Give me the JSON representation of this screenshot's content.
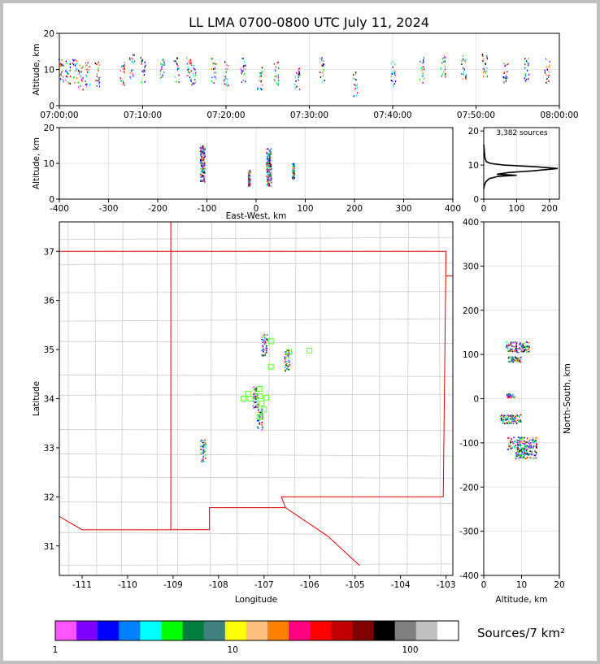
{
  "title": "LL LMA 0700-0800 UTC July 11, 2024",
  "source_count_label": "3,382 sources",
  "colorbar": {
    "label": "Sources/7 km²",
    "ticks": [
      "1",
      "10",
      "100"
    ],
    "colors": [
      "#ff55ff",
      "#8000ff",
      "#0000ff",
      "#0080ff",
      "#00ffff",
      "#00ff00",
      "#008040",
      "#408080",
      "#ffff00",
      "#ffbf80",
      "#ff8000",
      "#ff0080",
      "#ff0000",
      "#c00000",
      "#800000",
      "#000000",
      "#808080",
      "#c0c0c0",
      "#ffffff"
    ]
  },
  "chart_data": [
    {
      "type": "scatter",
      "name": "time-height",
      "ylabel": "Altitude, km",
      "xlabel": "",
      "x_ticks": [
        "07:00:00",
        "07:10:00",
        "07:20:00",
        "07:30:00",
        "07:40:00",
        "07:50:00",
        "08:00:00"
      ],
      "xlim_minutes": [
        0,
        60
      ],
      "ylim": [
        0,
        20
      ],
      "y_ticks": [
        0,
        10,
        20
      ],
      "grid": true,
      "point_groups": [
        {
          "t": 0.2,
          "z": 10
        },
        {
          "t": 1.0,
          "z": 9
        },
        {
          "t": 1.8,
          "z": 10
        },
        {
          "t": 2.5,
          "z": 8
        },
        {
          "t": 3.3,
          "z": 9
        },
        {
          "t": 4.5,
          "z": 9
        },
        {
          "t": 7.5,
          "z": 9
        },
        {
          "t": 8.7,
          "z": 11
        },
        {
          "t": 10.0,
          "z": 10
        },
        {
          "t": 12.3,
          "z": 11
        },
        {
          "t": 14.0,
          "z": 10
        },
        {
          "t": 15.5,
          "z": 10
        },
        {
          "t": 16.0,
          "z": 9
        },
        {
          "t": 18.5,
          "z": 10
        },
        {
          "t": 20.0,
          "z": 9
        },
        {
          "t": 22.0,
          "z": 10
        },
        {
          "t": 24.0,
          "z": 8
        },
        {
          "t": 26.0,
          "z": 9
        },
        {
          "t": 28.5,
          "z": 8
        },
        {
          "t": 31.5,
          "z": 10
        },
        {
          "t": 35.5,
          "z": 6
        },
        {
          "t": 40.0,
          "z": 9
        },
        {
          "t": 43.5,
          "z": 10
        },
        {
          "t": 46.0,
          "z": 11
        },
        {
          "t": 48.5,
          "z": 11
        },
        {
          "t": 51.0,
          "z": 11
        },
        {
          "t": 53.5,
          "z": 10
        },
        {
          "t": 56.0,
          "z": 10
        },
        {
          "t": 58.5,
          "z": 10
        }
      ]
    },
    {
      "type": "scatter",
      "name": "east-west-height",
      "xlabel": "East-West, km",
      "ylabel": "Altitude, km",
      "xlim": [
        -400,
        400
      ],
      "x_ticks": [
        -400,
        -300,
        -200,
        -100,
        0,
        100,
        200,
        300,
        400
      ],
      "ylim": [
        0,
        20
      ],
      "y_ticks": [
        0,
        10,
        20
      ],
      "grid": true,
      "point_groups": [
        {
          "x": -110,
          "z": 10,
          "spread": 7
        },
        {
          "x": -15,
          "z": 6,
          "spread": 3
        },
        {
          "x": 25,
          "z": 9,
          "spread": 7
        },
        {
          "x": 75,
          "z": 8,
          "spread": 3
        }
      ]
    },
    {
      "type": "line",
      "name": "altitude-histogram",
      "xlim": [
        0,
        230
      ],
      "x_ticks": [
        0,
        100,
        200
      ],
      "ylim": [
        0,
        21
      ],
      "y_ticks": [
        0,
        10,
        20
      ],
      "grid": true,
      "altitude_km": [
        3,
        4,
        5,
        6,
        6.7,
        7,
        7.3,
        7.8,
        8.3,
        9,
        9.5,
        10,
        10.5,
        11,
        11.5,
        12,
        12.5,
        13,
        14,
        15,
        16
      ],
      "count": [
        0,
        2,
        6,
        16,
        45,
        100,
        40,
        75,
        150,
        225,
        160,
        60,
        20,
        8,
        6,
        4,
        3,
        3,
        2,
        1,
        0
      ]
    },
    {
      "type": "scatter",
      "name": "plan-view",
      "xlabel": "Longitude",
      "ylabel": "Latitude",
      "xlim": [
        -111.5,
        -102.85
      ],
      "x_ticks": [
        -111,
        -110,
        -109,
        -108,
        -107,
        -106,
        -105,
        -104,
        -103
      ],
      "ylim": [
        30.4,
        37.6
      ],
      "y_ticks": [
        31,
        32,
        33,
        34,
        35,
        36,
        37
      ],
      "point_groups": [
        {
          "lon": -107.0,
          "lat": 35.1
        },
        {
          "lon": -106.5,
          "lat": 34.8
        },
        {
          "lon": -107.2,
          "lat": 34.05
        },
        {
          "lon": -107.1,
          "lat": 33.6
        },
        {
          "lon": -108.35,
          "lat": 32.95
        }
      ],
      "stations": [
        {
          "lon": -106.85,
          "lat": 35.17
        },
        {
          "lon": -106.45,
          "lat": 34.95
        },
        {
          "lon": -106.0,
          "lat": 34.98
        },
        {
          "lon": -106.85,
          "lat": 34.65
        },
        {
          "lon": -107.1,
          "lat": 34.2
        },
        {
          "lon": -107.35,
          "lat": 34.1
        },
        {
          "lon": -107.1,
          "lat": 34.05
        },
        {
          "lon": -107.45,
          "lat": 34.0
        },
        {
          "lon": -107.3,
          "lat": 34.0
        },
        {
          "lon": -106.95,
          "lat": 34.02
        },
        {
          "lon": -107.05,
          "lat": 33.9
        },
        {
          "lon": -107.0,
          "lat": 33.78
        },
        {
          "lon": -107.1,
          "lat": 33.63
        }
      ]
    },
    {
      "type": "scatter",
      "name": "height-north-south",
      "xlabel": "Altitude, km",
      "ylabel": "North-South, km",
      "xlim": [
        0,
        20
      ],
      "x_ticks": [
        0,
        10,
        20
      ],
      "ylim": [
        -400,
        400
      ],
      "y_ticks": [
        -400,
        -300,
        -200,
        -100,
        0,
        100,
        200,
        300,
        400
      ],
      "grid": true,
      "point_groups": [
        {
          "z": 9,
          "y": 118,
          "spread": 6
        },
        {
          "z": 8,
          "y": 90,
          "spread": 3
        },
        {
          "z": 7,
          "y": 8,
          "spread": 2
        },
        {
          "z": 7,
          "y": -45,
          "spread": 5
        },
        {
          "z": 10,
          "y": -100,
          "spread": 7
        },
        {
          "z": 11,
          "y": -125,
          "spread": 5
        }
      ]
    }
  ]
}
